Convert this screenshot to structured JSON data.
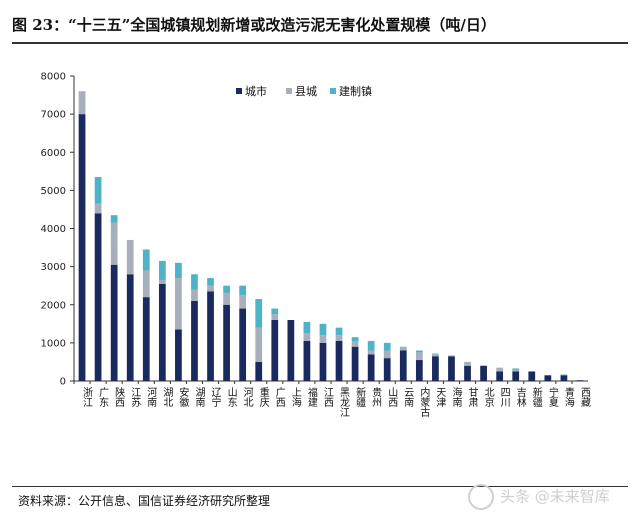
{
  "header": {
    "title": "图 23：“十三五”全国城镇规划新增或改造污泥无害化处置规模（吨/日）"
  },
  "footer": {
    "source": "资料来源：公开信息、国信证券经济研究所整理"
  },
  "watermark": {
    "text": "头条 @未来智库"
  },
  "colors": {
    "city": "#1b2a5e",
    "county": "#a7afbd",
    "town": "#4fb3c8"
  },
  "chart_data": {
    "type": "bar",
    "stacked": true,
    "title": "“十三五”全国城镇规划新增或改造污泥无害化处置规模（吨/日）",
    "ylim": [
      0,
      8000
    ],
    "yticks": [
      0,
      1000,
      2000,
      3000,
      4000,
      5000,
      6000,
      7000,
      8000
    ],
    "legend_position": "top-center",
    "categories": [
      "浙江",
      "广东",
      "陕西",
      "江苏",
      "河南",
      "湖北",
      "安徽",
      "湖南",
      "辽宁",
      "山东",
      "河北",
      "重庆",
      "广西",
      "上海",
      "福建",
      "江西",
      "黑龙江",
      "新疆",
      "贵州",
      "山西",
      "云南",
      "内蒙古",
      "天津",
      "海南",
      "甘肃",
      "北京",
      "四川",
      "吉林",
      "新疆",
      "宁夏",
      "青海",
      "西藏"
    ],
    "series": [
      {
        "name": "城市",
        "values": [
          7000,
          4400,
          3050,
          2800,
          2200,
          2550,
          1350,
          2100,
          2350,
          2000,
          1900,
          500,
          1600,
          1600,
          1050,
          1000,
          1050,
          900,
          700,
          600,
          800,
          550,
          650,
          650,
          400,
          400,
          250,
          250,
          250,
          150,
          150,
          20
        ]
      },
      {
        "name": "县城",
        "values": [
          600,
          250,
          1100,
          900,
          700,
          100,
          1350,
          300,
          150,
          300,
          350,
          900,
          150,
          0,
          200,
          200,
          150,
          150,
          100,
          200,
          100,
          200,
          50,
          20,
          100,
          0,
          100,
          50,
          0,
          0,
          0,
          0
        ]
      },
      {
        "name": "建制镇",
        "values": [
          0,
          700,
          200,
          0,
          550,
          500,
          400,
          400,
          200,
          200,
          250,
          750,
          150,
          0,
          300,
          300,
          200,
          100,
          250,
          200,
          0,
          50,
          20,
          0,
          0,
          0,
          0,
          30,
          0,
          0,
          20,
          0
        ]
      }
    ]
  }
}
